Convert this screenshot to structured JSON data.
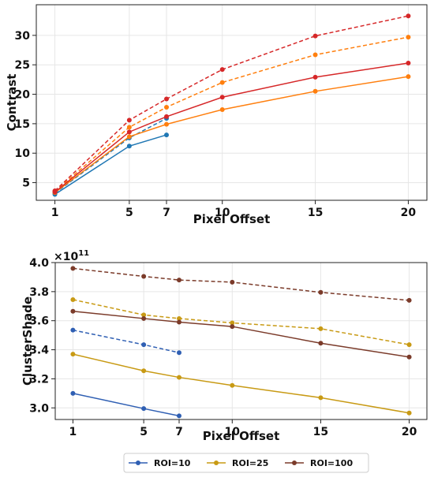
{
  "chart_data": [
    {
      "type": "line",
      "title": "",
      "xlabel": "Pixel Offset",
      "ylabel": "Contrast",
      "x_ticks": [
        1,
        5,
        7,
        10,
        15,
        20
      ],
      "y_ticks": [
        5,
        10,
        15,
        20,
        25,
        30
      ],
      "xlim": [
        0.0,
        21.0
      ],
      "ylim": [
        2.0,
        35.2
      ],
      "grid": true,
      "legend": "none",
      "series": [
        {
          "color": "#1f77b4",
          "dashed": false,
          "x": [
            1,
            5,
            7
          ],
          "y": [
            3.0,
            11.2,
            13.1
          ]
        },
        {
          "color": "#1f77b4",
          "dashed": true,
          "x": [
            1,
            5,
            7
          ],
          "y": [
            3.2,
            12.6,
            15.9
          ]
        },
        {
          "color": "#ff7f0e",
          "dashed": false,
          "x": [
            1,
            5,
            7,
            10,
            15,
            20
          ],
          "y": [
            3.3,
            12.8,
            14.9,
            17.4,
            20.5,
            23.0
          ]
        },
        {
          "color": "#ff7f0e",
          "dashed": true,
          "x": [
            1,
            5,
            7,
            10,
            15,
            20
          ],
          "y": [
            3.5,
            14.4,
            17.8,
            22.0,
            26.7,
            29.7
          ]
        },
        {
          "color": "#d62728",
          "dashed": false,
          "x": [
            1,
            5,
            7,
            10,
            15,
            20
          ],
          "y": [
            3.4,
            13.6,
            16.2,
            19.5,
            22.9,
            25.3
          ]
        },
        {
          "color": "#d62728",
          "dashed": true,
          "x": [
            1,
            5,
            7,
            10,
            15,
            20
          ],
          "y": [
            3.6,
            15.6,
            19.2,
            24.2,
            29.9,
            33.3
          ]
        }
      ]
    },
    {
      "type": "line",
      "title": "",
      "xlabel": "Pixel Offset",
      "ylabel": "ClusterShade",
      "y_multiplier": "×10",
      "y_multiplier_exp": "11",
      "x_ticks": [
        1,
        5,
        7,
        10,
        15,
        20
      ],
      "y_ticks": [
        "3.0",
        "3.2",
        "3.4",
        "3.6",
        "3.8",
        "4.0"
      ],
      "y_tick_values": [
        3.0,
        3.2,
        3.4,
        3.6,
        3.8,
        4.0
      ],
      "xlim": [
        0.0,
        21.0
      ],
      "ylim": [
        2.92,
        4.0
      ],
      "grid": true,
      "legend": "bottom-center",
      "legend_entries": [
        "ROI=10",
        "ROI=25",
        "ROI=100"
      ],
      "legend_colors": [
        "#2f5fb3",
        "#c89a14",
        "#7b3b2a"
      ],
      "series": [
        {
          "name": "ROI=10",
          "color": "#2f5fb3",
          "dashed": false,
          "x": [
            1,
            5,
            7
          ],
          "y": [
            3.1,
            2.995,
            2.945
          ]
        },
        {
          "color": "#2f5fb3",
          "dashed": true,
          "x": [
            1,
            5,
            7
          ],
          "y": [
            3.535,
            3.435,
            3.38
          ]
        },
        {
          "name": "ROI=25",
          "color": "#c89a14",
          "dashed": false,
          "x": [
            1,
            5,
            7,
            10,
            15,
            20
          ],
          "y": [
            3.37,
            3.255,
            3.21,
            3.155,
            3.07,
            2.965
          ]
        },
        {
          "color": "#c89a14",
          "dashed": true,
          "x": [
            1,
            5,
            7,
            10,
            15,
            20
          ],
          "y": [
            3.745,
            3.64,
            3.615,
            3.585,
            3.545,
            3.435
          ]
        },
        {
          "name": "ROI=100",
          "color": "#7b3b2a",
          "dashed": false,
          "x": [
            1,
            5,
            7,
            10,
            15,
            20
          ],
          "y": [
            3.665,
            3.615,
            3.59,
            3.56,
            3.445,
            3.35
          ]
        },
        {
          "color": "#7b3b2a",
          "dashed": true,
          "x": [
            1,
            5,
            7,
            10,
            15,
            20
          ],
          "y": [
            3.96,
            3.905,
            3.88,
            3.865,
            3.795,
            3.74
          ]
        }
      ]
    }
  ]
}
